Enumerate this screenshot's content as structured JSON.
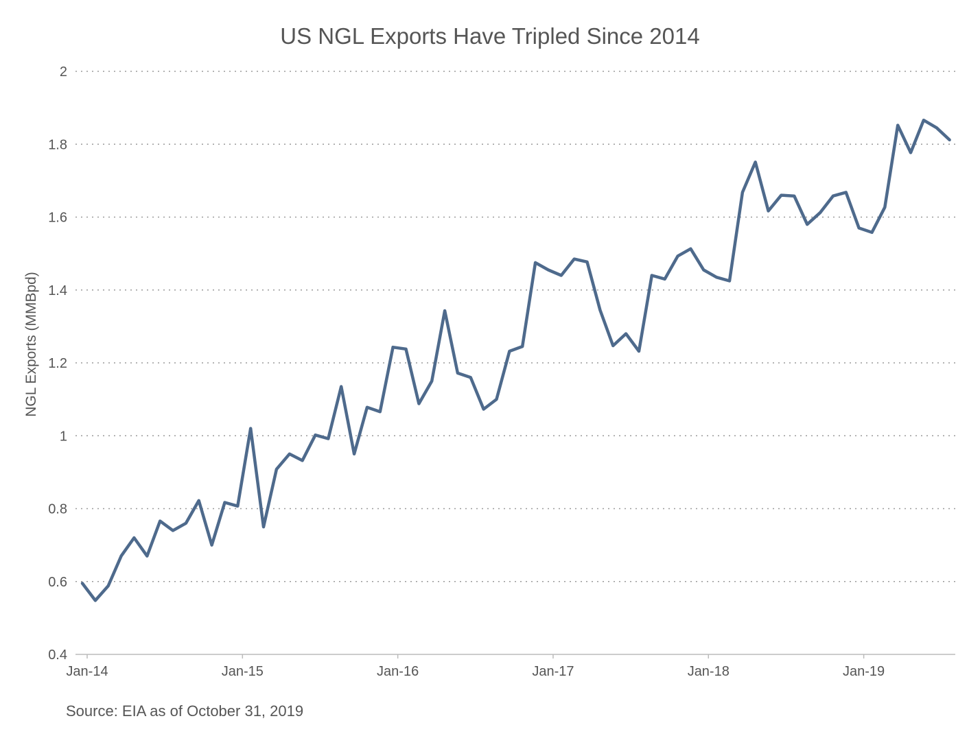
{
  "chart_data": {
    "type": "line",
    "title": "US NGL Exports Have Tripled Since 2014",
    "xlabel": "",
    "ylabel": "NGL Exports (MMBpd)",
    "source": "Source: EIA as of October 31, 2019",
    "ylim": [
      0.4,
      2
    ],
    "yticks": [
      "0.4",
      "0.6",
      "0.8",
      "1",
      "1.2",
      "1.4",
      "1.6",
      "1.8",
      "2"
    ],
    "xticks": [
      {
        "label": "Jan-14",
        "index": 0
      },
      {
        "label": "Jan-15",
        "index": 12
      },
      {
        "label": "Jan-16",
        "index": 24
      },
      {
        "label": "Jan-17",
        "index": 36
      },
      {
        "label": "Jan-18",
        "index": 48
      },
      {
        "label": "Jan-19",
        "index": 60
      }
    ],
    "grid": true,
    "line_color": "#4e6a8c",
    "series": [
      {
        "values": [
          0.595,
          0.548,
          0.588,
          0.67,
          0.72,
          0.67,
          0.766,
          0.74,
          0.76,
          0.822,
          0.7,
          0.817,
          0.807,
          1.02,
          0.75,
          0.908,
          0.95,
          0.932,
          1.002,
          0.992,
          1.135,
          0.95,
          1.078,
          1.066,
          1.243,
          1.238,
          1.088,
          1.15,
          1.343,
          1.172,
          1.16,
          1.073,
          1.1,
          1.232,
          1.245,
          1.475,
          1.455,
          1.44,
          1.485,
          1.477,
          1.345,
          1.247,
          1.28,
          1.232,
          1.44,
          1.43,
          1.493,
          1.513,
          1.455,
          1.435,
          1.425,
          1.668,
          1.751,
          1.617,
          1.66,
          1.658,
          1.58,
          1.612,
          1.658,
          1.668,
          1.57,
          1.558,
          1.627,
          1.852,
          1.777,
          1.866,
          1.845,
          1.812
        ]
      }
    ]
  }
}
